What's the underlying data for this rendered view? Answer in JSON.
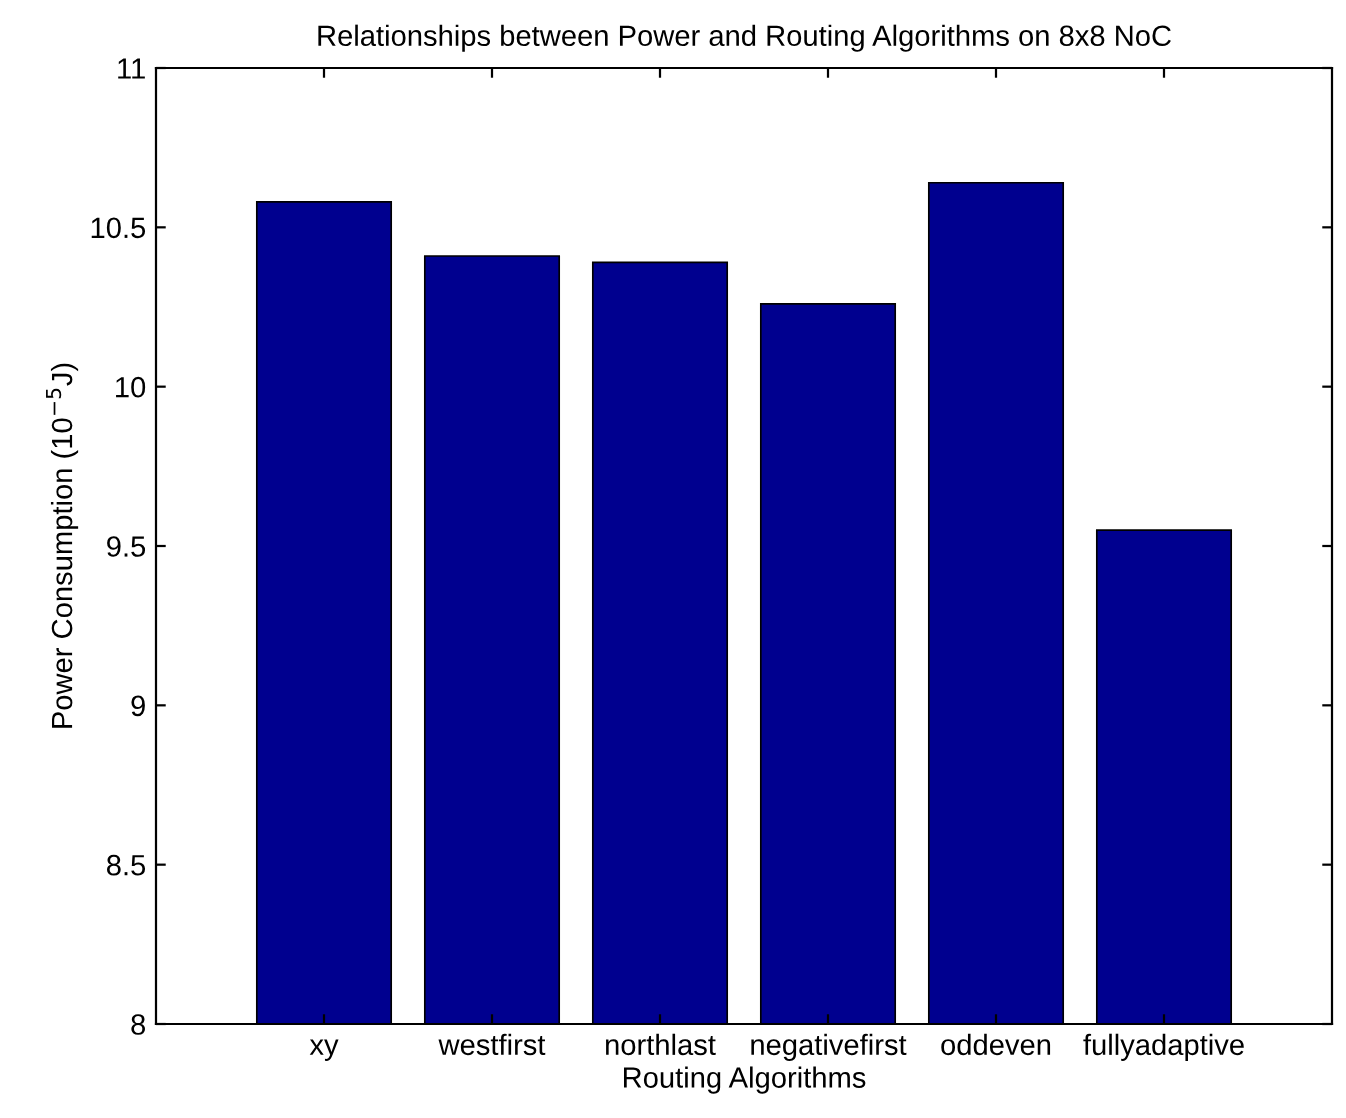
{
  "chart_data": {
    "type": "bar",
    "title": "Relationships between Power and Routing Algorithms on 8x8 NoC",
    "xlabel": "Routing Algorithms",
    "ylabel": "Power Consumption (10$^{−5}$J)",
    "categories": [
      "xy",
      "westfirst",
      "northlast",
      "negativefirst",
      "oddeven",
      "fullyadaptive"
    ],
    "values": [
      10.58,
      10.41,
      10.39,
      10.26,
      10.64,
      9.55
    ],
    "color": "#00008f",
    "ylim": [
      8,
      11
    ],
    "yticks": [
      8,
      8.5,
      9,
      9.5,
      10,
      10.5,
      11
    ],
    "grid": false
  }
}
